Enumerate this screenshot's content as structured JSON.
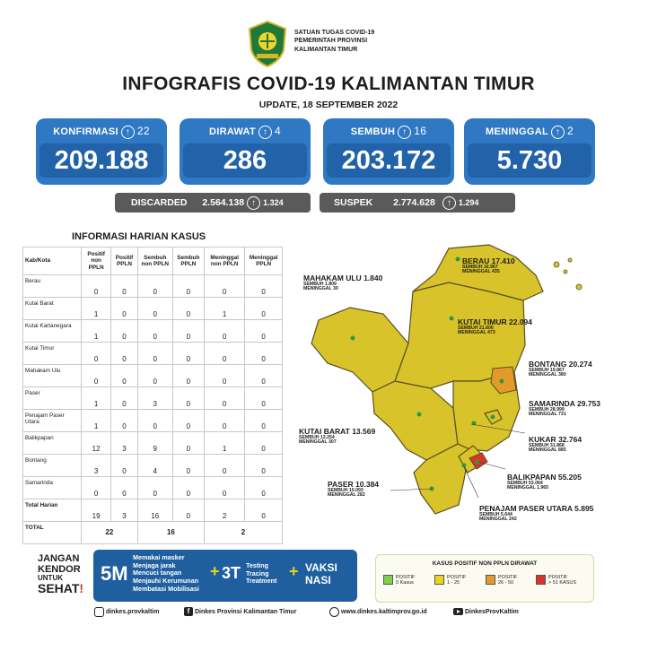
{
  "header": {
    "org_line1": "SATUAN TUGAS COVID-19",
    "org_line2": "PEMERINTAH PROVINSI",
    "org_line3": "KALIMANTAN TIMUR",
    "title": "INFOGRAFIS COVID-19 KALIMANTAN TIMUR",
    "update": "UPDATE, 18 SEPTEMBER 2022"
  },
  "stats": [
    {
      "label": "KONFIRMASI",
      "delta": "22",
      "value": "209.188"
    },
    {
      "label": "DIRAWAT",
      "delta": "4",
      "value": "286"
    },
    {
      "label": "SEMBUH",
      "delta": "16",
      "value": "203.172"
    },
    {
      "label": "MENINGGAL",
      "delta": "2",
      "value": "5.730"
    }
  ],
  "discarded": {
    "label": "DISCARDED",
    "value": "2.564.138",
    "delta": "1.324"
  },
  "suspek": {
    "label": "SUSPEK",
    "value": "2.774.628",
    "delta": "1.294"
  },
  "table": {
    "title": "INFORMASI HARIAN KASUS",
    "headers": [
      "Kab/Kota",
      "Positif non PPLN",
      "Positif PPLN",
      "Sembuh non PPLN",
      "Sembuh PPLN",
      "Meninggal non PPLN",
      "Meninggal PPLN"
    ],
    "rows": [
      {
        "name": "Berau",
        "v": [
          "0",
          "0",
          "0",
          "0",
          "0",
          "0"
        ]
      },
      {
        "name": "Kutai Barat",
        "v": [
          "1",
          "0",
          "0",
          "0",
          "1",
          "0"
        ]
      },
      {
        "name": "Kutai Kartanegara",
        "v": [
          "1",
          "0",
          "0",
          "0",
          "0",
          "0"
        ]
      },
      {
        "name": "Kutai Timur",
        "v": [
          "0",
          "0",
          "0",
          "0",
          "0",
          "0"
        ]
      },
      {
        "name": "Mahakam Ulu",
        "v": [
          "0",
          "0",
          "0",
          "0",
          "0",
          "0"
        ]
      },
      {
        "name": "Paser",
        "v": [
          "1",
          "0",
          "3",
          "0",
          "0",
          "0"
        ]
      },
      {
        "name": "Penajam Paser Utara",
        "v": [
          "1",
          "0",
          "0",
          "0",
          "0",
          "0"
        ]
      },
      {
        "name": "Balikpapan",
        "v": [
          "12",
          "3",
          "9",
          "0",
          "1",
          "0"
        ]
      },
      {
        "name": "Bontang",
        "v": [
          "3",
          "0",
          "4",
          "0",
          "0",
          "0"
        ]
      },
      {
        "name": "Samarinda",
        "v": [
          "0",
          "0",
          "0",
          "0",
          "0",
          "0"
        ]
      },
      {
        "name": "Total Harian",
        "v": [
          "19",
          "3",
          "16",
          "0",
          "2",
          "0"
        ]
      }
    ],
    "total_label": "TOTAL",
    "totals": [
      "22",
      "16",
      "2"
    ]
  },
  "map_labels": [
    {
      "name": "BERAU",
      "total": "17.410",
      "sembuh": "SEMBUH 16.967",
      "meninggal": "MENINGGAL 435"
    },
    {
      "name": "MAHAKAM ULU",
      "total": "1.840",
      "sembuh": "SEMBUH 1.809",
      "meninggal": "MENINGGAL 30"
    },
    {
      "name": "KUTAI TIMUR",
      "total": "22.094",
      "sembuh": "SEMBUH 21.606",
      "meninggal": "MENINGGAL 473"
    },
    {
      "name": "BONTANG",
      "total": "20.274",
      "sembuh": "SEMBUH 19.867",
      "meninggal": "MENINGGAL 380"
    },
    {
      "name": "SAMARINDA",
      "total": "29.753",
      "sembuh": "SEMBUH 28.999",
      "meninggal": "MENINGGAL 731"
    },
    {
      "name": "KUTAI BARAT",
      "total": "13.569",
      "sembuh": "SEMBUH 13.254",
      "meninggal": "MENINGGAL 307"
    },
    {
      "name": "KUKAR",
      "total": "32.764",
      "sembuh": "SEMBUH 31.868",
      "meninggal": "MENINGGAL 885"
    },
    {
      "name": "BALIKPAPAN",
      "total": "55.205",
      "sembuh": "SEMBUH 53.064",
      "meninggal": "MENINGGAL 1.965"
    },
    {
      "name": "PASER",
      "total": "10.384",
      "sembuh": "SEMBUH 10.093",
      "meninggal": "MENINGGAL 282"
    },
    {
      "name": "PENAJAM PASER UTARA",
      "total": "5.895",
      "sembuh": "SEMBUH 5.644",
      "meninggal": "MENINGGAL 242"
    }
  ],
  "footer": {
    "jangan": "JANGAN",
    "kendor": "KENDOR",
    "untuk": "UNTUK",
    "sehat": "SEHAT",
    "m5": "5M",
    "m5_items": [
      "Memakai masker",
      "Menjaga jarak",
      "Mencuci tangan",
      "Menjauhi Kerumunan",
      "Membatasi Mobilisasi"
    ],
    "t3": "3T",
    "t3_items": [
      "Testing",
      "Tracing",
      "Treatment"
    ],
    "vaksi1": "VAKSI",
    "vaksi2": "NASI",
    "plus": "+"
  },
  "legend": {
    "title": "KASUS POSITIF NON PPLN DIRAWAT",
    "items": [
      {
        "l1": "POSITIF",
        "l2": "0 Kasus",
        "color": "#7fd14a"
      },
      {
        "l1": "POSITIF",
        "l2": "1 - 25",
        "color": "#e8d61e"
      },
      {
        "l1": "POSITIF",
        "l2": "26 - 50",
        "color": "#e39a2a"
      },
      {
        "l1": "POSITIF",
        "l2": "> 51 KASUS",
        "color": "#d9342b"
      }
    ]
  },
  "socials": [
    {
      "icon": "instagram-icon",
      "text": "dinkes.provkaltim"
    },
    {
      "icon": "facebook-icon",
      "text": "Dinkes Provinsi Kalimantan Timur"
    },
    {
      "icon": "globe-icon",
      "text": "www.dinkes.kaltimprov.go.id"
    },
    {
      "icon": "youtube-icon",
      "text": "DinkesProvKaltim"
    }
  ],
  "colors": {
    "brand_blue": "#2f78c3",
    "map_yellow": "#d9c32a",
    "bontang_orange": "#e39a2a",
    "balikpapan_red": "#d9342b"
  }
}
